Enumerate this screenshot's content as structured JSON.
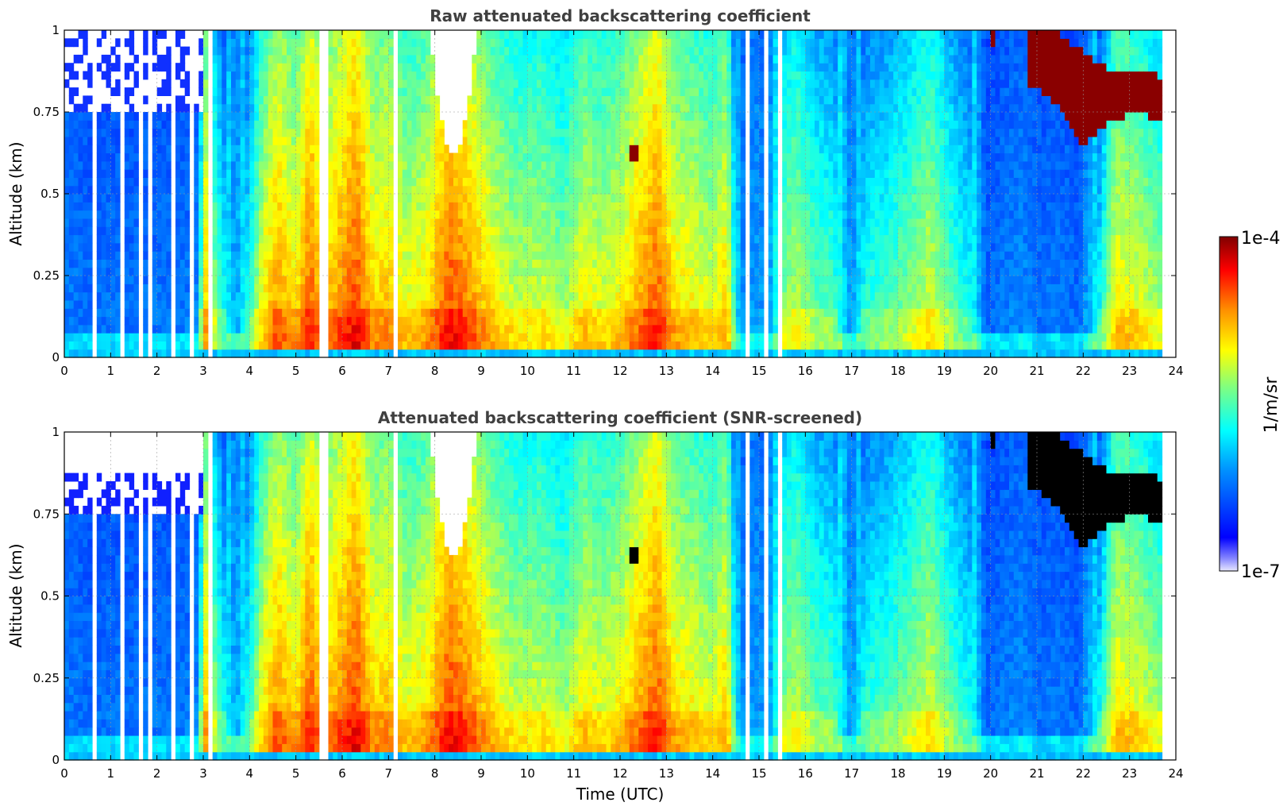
{
  "chart_data": [
    {
      "type": "heatmap",
      "title": "Raw attenuated backscattering coefficient",
      "ylabel": "Altitude (km)",
      "xlim": [
        0,
        24
      ],
      "ylim": [
        0,
        1
      ],
      "x_ticks": [
        "0",
        "1",
        "2",
        "3",
        "4",
        "5",
        "6",
        "7",
        "8",
        "9",
        "10",
        "11",
        "12",
        "13",
        "14",
        "15",
        "16",
        "17",
        "18",
        "19",
        "20",
        "21",
        "22",
        "23",
        "24"
      ],
      "y_ticks": [
        "0",
        "0.25",
        "0.5",
        "0.75",
        "1"
      ],
      "grid": true,
      "colormap": "jet",
      "screened": false
    },
    {
      "type": "heatmap",
      "title": "Attenuated backscattering coefficient (SNR-screened)",
      "xlabel": "Time (UTC)",
      "ylabel": "Altitude (km)",
      "xlim": [
        0,
        24
      ],
      "ylim": [
        0,
        1
      ],
      "x_ticks": [
        "0",
        "1",
        "2",
        "3",
        "4",
        "5",
        "6",
        "7",
        "8",
        "9",
        "10",
        "11",
        "12",
        "13",
        "14",
        "15",
        "16",
        "17",
        "18",
        "19",
        "20",
        "21",
        "22",
        "23",
        "24"
      ],
      "y_ticks": [
        "0",
        "0.25",
        "0.5",
        "0.75",
        "1"
      ],
      "grid": true,
      "colormap": "jet",
      "screened": true
    }
  ],
  "colorbar": {
    "max_label": "1e-4",
    "min_label": "1e-7",
    "unit_label": "1/m/sr",
    "scale": "log"
  },
  "profile_model": {
    "description_units": "time in UTC hours, value in colour index 0 (1e-7) to 1 (1e-4)",
    "data_end_hour": 23.7,
    "columns": [
      [
        0.0,
        0.28
      ],
      [
        0.5,
        0.26
      ],
      [
        1.0,
        0.27
      ],
      [
        1.5,
        0.26
      ],
      [
        2.0,
        0.27
      ],
      [
        2.5,
        0.27
      ],
      [
        2.9,
        0.29
      ],
      [
        3.0,
        0.78
      ],
      [
        3.3,
        0.55
      ],
      [
        3.7,
        0.32
      ],
      [
        4.0,
        0.5
      ],
      [
        4.3,
        0.7
      ],
      [
        4.6,
        0.8
      ],
      [
        5.0,
        0.72
      ],
      [
        5.3,
        0.86
      ],
      [
        5.6,
        0.74
      ],
      [
        6.0,
        0.82
      ],
      [
        6.3,
        0.88
      ],
      [
        6.7,
        0.73
      ],
      [
        7.0,
        0.76
      ],
      [
        7.4,
        0.68
      ],
      [
        7.8,
        0.72
      ],
      [
        8.3,
        0.88
      ],
      [
        8.8,
        0.8
      ],
      [
        9.3,
        0.7
      ],
      [
        9.8,
        0.64
      ],
      [
        10.3,
        0.66
      ],
      [
        10.8,
        0.6
      ],
      [
        11.2,
        0.7
      ],
      [
        11.6,
        0.66
      ],
      [
        12.0,
        0.7
      ],
      [
        12.4,
        0.78
      ],
      [
        12.8,
        0.86
      ],
      [
        13.2,
        0.72
      ],
      [
        13.6,
        0.7
      ],
      [
        14.0,
        0.66
      ],
      [
        14.3,
        0.74
      ],
      [
        14.6,
        0.3
      ],
      [
        14.9,
        0.33
      ],
      [
        15.2,
        0.3
      ],
      [
        15.5,
        0.58
      ],
      [
        15.8,
        0.64
      ],
      [
        16.2,
        0.55
      ],
      [
        16.6,
        0.53
      ],
      [
        17.0,
        0.3
      ],
      [
        17.3,
        0.5
      ],
      [
        17.7,
        0.52
      ],
      [
        18.2,
        0.58
      ],
      [
        18.7,
        0.66
      ],
      [
        19.2,
        0.53
      ],
      [
        19.6,
        0.46
      ],
      [
        19.9,
        0.25
      ],
      [
        20.3,
        0.28
      ],
      [
        20.7,
        0.3
      ],
      [
        21.1,
        0.26
      ],
      [
        21.5,
        0.28
      ],
      [
        21.9,
        0.25
      ],
      [
        22.3,
        0.42
      ],
      [
        22.7,
        0.7
      ],
      [
        23.1,
        0.68
      ],
      [
        23.5,
        0.62
      ],
      [
        23.7,
        0.6
      ]
    ],
    "white_gap_hours": [
      0.7,
      1.25,
      1.7,
      1.85,
      2.35,
      2.75,
      3.1,
      5.55,
      5.63,
      7.12,
      14.72,
      15.15,
      15.45
    ],
    "white_cap_region": {
      "start": 7.9,
      "end": 8.9,
      "min_altitude_km": 0.62
    },
    "dense_layers": [
      {
        "start": 20.8,
        "end": 23.7,
        "bottom_km": [
          0.84,
          0.78,
          0.65,
          0.72,
          0.75,
          0.72
        ],
        "top_km": [
          1.0,
          1.0,
          0.94,
          0.88,
          0.88,
          0.86
        ]
      },
      {
        "start": 12.25,
        "end": 12.45,
        "bottom_km": [
          0.6,
          0.6
        ],
        "top_km": [
          0.66,
          0.66
        ]
      },
      {
        "start": 20.05,
        "end": 20.15,
        "bottom_km": [
          0.94,
          0.94
        ],
        "top_km": [
          1.0,
          1.0
        ]
      }
    ]
  }
}
